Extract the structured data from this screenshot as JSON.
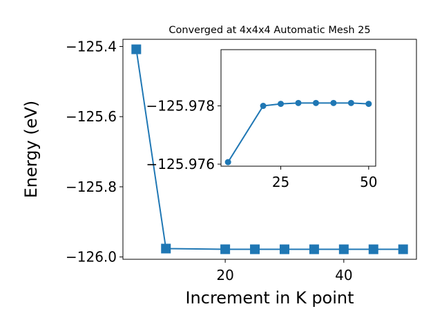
{
  "chart_data": [
    {
      "type": "line",
      "title": "Converged at 4x4x4 Automatic Mesh 25",
      "x_label": "Increment in K point",
      "y_label": "Energy (eV)",
      "x": [
        5,
        10,
        20,
        25,
        30,
        35,
        40,
        45,
        50
      ],
      "series": [
        {
          "color": "#1f77b4",
          "marker": "square",
          "values": [
            -125.408,
            -125.97607,
            -125.978,
            -125.97807,
            -125.9781,
            -125.9781,
            -125.9781,
            -125.9781,
            -125.97807
          ]
        }
      ],
      "xlim": [
        2.75,
        52.25
      ],
      "xticks": [
        20,
        40
      ],
      "ylim": [
        -126.0066,
        -125.3795
      ],
      "yticks": [
        {
          "value": -125.4,
          "label": "−125.4"
        },
        {
          "value": -125.6,
          "label": "−125.6"
        },
        {
          "value": -125.8,
          "label": "−125.8"
        },
        {
          "value": -126.0,
          "label": "−126.0"
        }
      ]
    },
    {
      "type": "line",
      "x": [
        10,
        20,
        25,
        30,
        35,
        40,
        45,
        50
      ],
      "series": [
        {
          "color": "#1f77b4",
          "marker": "circle",
          "values": [
            -125.97607,
            -125.978,
            -125.97807,
            -125.9781,
            -125.9781,
            -125.9781,
            -125.9781,
            -125.97807
          ]
        }
      ],
      "xlim": [
        8,
        52
      ],
      "xticks": [
        25,
        50
      ],
      "ylim": [
        -125.97593,
        -125.97993
      ],
      "yticks": [
        {
          "value": -125.978,
          "label": "−125.978"
        },
        {
          "value": -125.976,
          "label": "−125.976"
        }
      ]
    }
  ]
}
